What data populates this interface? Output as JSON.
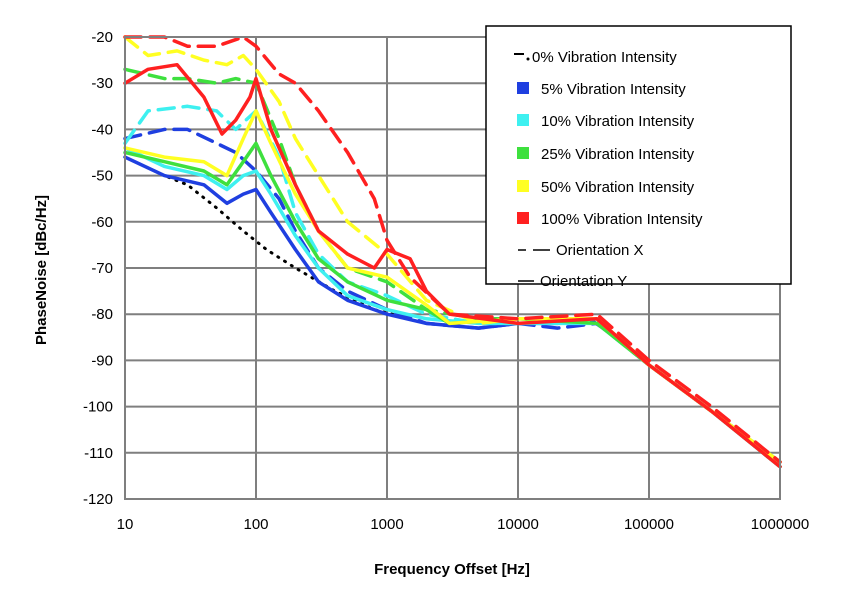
{
  "chart_data": {
    "type": "line",
    "title": "",
    "xlabel": "Frequency  Offset [Hz]",
    "ylabel": "PhaseNoise  [dBc/Hz]",
    "xscale": "log",
    "xlim": [
      10,
      1000000
    ],
    "ylim": [
      -120,
      -20
    ],
    "x_ticks": [
      "10",
      "100",
      "1000",
      "10000",
      "100000",
      "1000000"
    ],
    "y_ticks": [
      "-20",
      "-30",
      "-40",
      "-50",
      "-60",
      "-70",
      "-80",
      "-90",
      "-100",
      "-110",
      "-120"
    ],
    "grid": true,
    "legend_position": "top-right",
    "legend": [
      {
        "label": "0% Vibration  Intensity",
        "color": "#000000",
        "marker": "dashdot"
      },
      {
        "label": "5% Vibration  Intensity",
        "color": "#1f3fe0",
        "marker": "square"
      },
      {
        "label": "10% Vibration  Intensity",
        "color": "#3ef0f0",
        "marker": "square"
      },
      {
        "label": "25% Vibration  Intensity",
        "color": "#3ee03e",
        "marker": "square"
      },
      {
        "label": "50% Vibration  Intensity",
        "color": "#ffff22",
        "marker": "square"
      },
      {
        "label": "100% Vibration  Intensity",
        "color": "#ff2020",
        "marker": "square"
      },
      {
        "label": "Orientation  X",
        "color": "#000000",
        "marker": "dash"
      },
      {
        "label": "Orientation  Y",
        "color": "#000000",
        "marker": "solid"
      }
    ],
    "series": [
      {
        "intensity": "0%",
        "orientation": "Y",
        "color": "#000000",
        "style": "dotted",
        "points": [
          [
            10,
            -46
          ],
          [
            20,
            -50
          ],
          [
            30,
            -52
          ],
          [
            50,
            -57
          ],
          [
            80,
            -62
          ],
          [
            120,
            -66
          ],
          [
            200,
            -70
          ],
          [
            400,
            -75
          ],
          [
            800,
            -79
          ],
          [
            1500,
            -81
          ]
        ]
      },
      {
        "intensity": "5%",
        "orientation": "Y",
        "color": "#1f3fe0",
        "style": "solid",
        "points": [
          [
            10,
            -46
          ],
          [
            20,
            -50
          ],
          [
            40,
            -52
          ],
          [
            60,
            -56
          ],
          [
            80,
            -54
          ],
          [
            100,
            -53
          ],
          [
            130,
            -58
          ],
          [
            200,
            -66
          ],
          [
            300,
            -73
          ],
          [
            500,
            -77
          ],
          [
            1000,
            -80
          ],
          [
            2000,
            -82
          ],
          [
            5000,
            -83
          ],
          [
            10000,
            -82
          ],
          [
            20000,
            -82
          ],
          [
            35000,
            -81
          ],
          [
            50000,
            -84
          ],
          [
            100000,
            -91
          ],
          [
            300000,
            -101
          ],
          [
            1000000,
            -113
          ]
        ]
      },
      {
        "intensity": "5%",
        "orientation": "X",
        "color": "#1f3fe0",
        "style": "dashed",
        "points": [
          [
            10,
            -42
          ],
          [
            20,
            -40
          ],
          [
            30,
            -40
          ],
          [
            50,
            -43
          ],
          [
            70,
            -45
          ],
          [
            100,
            -49
          ],
          [
            150,
            -55
          ],
          [
            200,
            -62
          ],
          [
            300,
            -70
          ],
          [
            500,
            -75
          ],
          [
            1000,
            -79
          ],
          [
            2000,
            -82
          ],
          [
            5000,
            -83
          ],
          [
            10000,
            -82
          ],
          [
            20000,
            -83
          ],
          [
            40000,
            -82
          ],
          [
            100000,
            -91
          ],
          [
            300000,
            -101
          ],
          [
            1000000,
            -112
          ]
        ]
      },
      {
        "intensity": "10%",
        "orientation": "Y",
        "color": "#3ef0f0",
        "style": "solid",
        "points": [
          [
            10,
            -44
          ],
          [
            20,
            -48
          ],
          [
            40,
            -50
          ],
          [
            60,
            -53
          ],
          [
            80,
            -50
          ],
          [
            100,
            -49
          ],
          [
            130,
            -54
          ],
          [
            200,
            -63
          ],
          [
            300,
            -70
          ],
          [
            500,
            -76
          ],
          [
            1000,
            -79
          ],
          [
            2000,
            -81
          ],
          [
            5000,
            -82
          ],
          [
            10000,
            -82
          ],
          [
            20000,
            -82
          ],
          [
            40000,
            -82
          ],
          [
            100000,
            -91
          ],
          [
            300000,
            -101
          ],
          [
            1000000,
            -112
          ]
        ]
      },
      {
        "intensity": "10%",
        "orientation": "X",
        "color": "#3ef0f0",
        "style": "dashed",
        "points": [
          [
            10,
            -43
          ],
          [
            15,
            -36
          ],
          [
            30,
            -35
          ],
          [
            50,
            -36
          ],
          [
            70,
            -40
          ],
          [
            100,
            -36
          ],
          [
            150,
            -46
          ],
          [
            200,
            -58
          ],
          [
            300,
            -67
          ],
          [
            500,
            -73
          ],
          [
            1000,
            -76
          ],
          [
            2000,
            -80
          ],
          [
            5000,
            -82
          ],
          [
            10000,
            -82
          ],
          [
            40000,
            -81
          ],
          [
            100000,
            -91
          ],
          [
            300000,
            -101
          ],
          [
            1000000,
            -112
          ]
        ]
      },
      {
        "intensity": "25%",
        "orientation": "Y",
        "color": "#3ee03e",
        "style": "solid",
        "points": [
          [
            10,
            -45
          ],
          [
            20,
            -47
          ],
          [
            40,
            -49
          ],
          [
            60,
            -52
          ],
          [
            80,
            -47
          ],
          [
            100,
            -43
          ],
          [
            130,
            -50
          ],
          [
            200,
            -60
          ],
          [
            300,
            -68
          ],
          [
            500,
            -73
          ],
          [
            1000,
            -77
          ],
          [
            2000,
            -79
          ],
          [
            3000,
            -82
          ],
          [
            10000,
            -81
          ],
          [
            40000,
            -82
          ],
          [
            100000,
            -91
          ],
          [
            300000,
            -101
          ],
          [
            1000000,
            -113
          ]
        ]
      },
      {
        "intensity": "25%",
        "orientation": "X",
        "color": "#3ee03e",
        "style": "dashed",
        "points": [
          [
            10,
            -27
          ],
          [
            20,
            -29
          ],
          [
            30,
            -29
          ],
          [
            50,
            -30
          ],
          [
            70,
            -29
          ],
          [
            100,
            -30
          ],
          [
            150,
            -42
          ],
          [
            200,
            -52
          ],
          [
            300,
            -62
          ],
          [
            500,
            -70
          ],
          [
            1000,
            -73
          ],
          [
            2000,
            -79
          ],
          [
            5000,
            -81
          ],
          [
            10000,
            -81
          ],
          [
            40000,
            -81
          ],
          [
            100000,
            -91
          ],
          [
            300000,
            -101
          ],
          [
            1000000,
            -112
          ]
        ]
      },
      {
        "intensity": "50%",
        "orientation": "Y",
        "color": "#ffff22",
        "style": "solid",
        "points": [
          [
            10,
            -44
          ],
          [
            20,
            -46
          ],
          [
            40,
            -47
          ],
          [
            60,
            -50
          ],
          [
            80,
            -42
          ],
          [
            100,
            -36
          ],
          [
            130,
            -43
          ],
          [
            200,
            -54
          ],
          [
            300,
            -62
          ],
          [
            500,
            -70
          ],
          [
            1000,
            -72
          ],
          [
            2000,
            -78
          ],
          [
            3000,
            -82
          ],
          [
            10000,
            -81
          ],
          [
            40000,
            -81
          ],
          [
            100000,
            -91
          ],
          [
            300000,
            -101
          ],
          [
            1000000,
            -112
          ]
        ]
      },
      {
        "intensity": "50%",
        "orientation": "X",
        "color": "#ffff22",
        "style": "dashed",
        "points": [
          [
            10,
            -20
          ],
          [
            15,
            -24
          ],
          [
            25,
            -23
          ],
          [
            40,
            -25
          ],
          [
            60,
            -26
          ],
          [
            80,
            -24
          ],
          [
            100,
            -27
          ],
          [
            150,
            -34
          ],
          [
            200,
            -42
          ],
          [
            300,
            -50
          ],
          [
            500,
            -60
          ],
          [
            1000,
            -67
          ],
          [
            2000,
            -77
          ],
          [
            5000,
            -82
          ],
          [
            10000,
            -81
          ],
          [
            40000,
            -81
          ],
          [
            100000,
            -91
          ],
          [
            300000,
            -101
          ],
          [
            1000000,
            -112
          ]
        ]
      },
      {
        "intensity": "100%",
        "orientation": "Y",
        "color": "#ff2020",
        "style": "solid",
        "points": [
          [
            10,
            -30
          ],
          [
            15,
            -27
          ],
          [
            25,
            -26
          ],
          [
            40,
            -33
          ],
          [
            55,
            -41
          ],
          [
            70,
            -38
          ],
          [
            90,
            -33
          ],
          [
            100,
            -29
          ],
          [
            130,
            -40
          ],
          [
            200,
            -52
          ],
          [
            300,
            -62
          ],
          [
            500,
            -67
          ],
          [
            800,
            -70
          ],
          [
            1000,
            -66
          ],
          [
            1500,
            -68
          ],
          [
            2000,
            -75
          ],
          [
            3000,
            -80
          ],
          [
            10000,
            -82
          ],
          [
            40000,
            -81
          ],
          [
            100000,
            -91
          ],
          [
            300000,
            -101
          ],
          [
            1000000,
            -113
          ]
        ]
      },
      {
        "intensity": "100%",
        "orientation": "X",
        "color": "#ff2020",
        "style": "dashed",
        "points": [
          [
            10,
            -20
          ],
          [
            20,
            -20
          ],
          [
            30,
            -22
          ],
          [
            50,
            -22
          ],
          [
            80,
            -20
          ],
          [
            100,
            -22
          ],
          [
            150,
            -28
          ],
          [
            200,
            -30
          ],
          [
            300,
            -36
          ],
          [
            500,
            -45
          ],
          [
            800,
            -55
          ],
          [
            1000,
            -64
          ],
          [
            1500,
            -72
          ],
          [
            3000,
            -80
          ],
          [
            10000,
            -81
          ],
          [
            40000,
            -80
          ],
          [
            100000,
            -90
          ],
          [
            300000,
            -100
          ],
          [
            1000000,
            -112
          ]
        ]
      }
    ]
  }
}
